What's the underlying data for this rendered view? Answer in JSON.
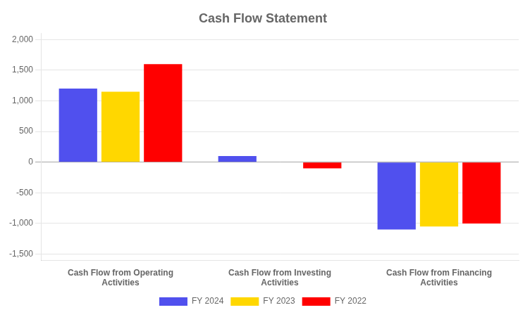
{
  "chart_data": {
    "type": "bar",
    "title": "Cash Flow Statement",
    "categories": [
      "Cash Flow from Operating\nActivities",
      "Cash Flow from Investing\nActivities",
      "Cash Flow from Financing\nActivities"
    ],
    "series": [
      {
        "name": "FY 2024",
        "color": "#5050EE",
        "values": [
          1200,
          100,
          -1100
        ]
      },
      {
        "name": "FY 2023",
        "color": "#FFD700",
        "values": [
          1150,
          0,
          -1050
        ]
      },
      {
        "name": "FY 2022",
        "color": "#FF0000",
        "values": [
          1600,
          -100,
          -1000
        ]
      }
    ],
    "ylim": [
      -1600,
      2100
    ],
    "yticks": [
      {
        "value": -1500,
        "label": "-1,500"
      },
      {
        "value": -1000,
        "label": "-1,000"
      },
      -500,
      0,
      500,
      {
        "value": 1000,
        "label": "1,000"
      },
      {
        "value": 1500,
        "label": "1,500"
      },
      {
        "value": 2000,
        "label": "2,000"
      }
    ],
    "grid": true,
    "legend": "bottom"
  }
}
